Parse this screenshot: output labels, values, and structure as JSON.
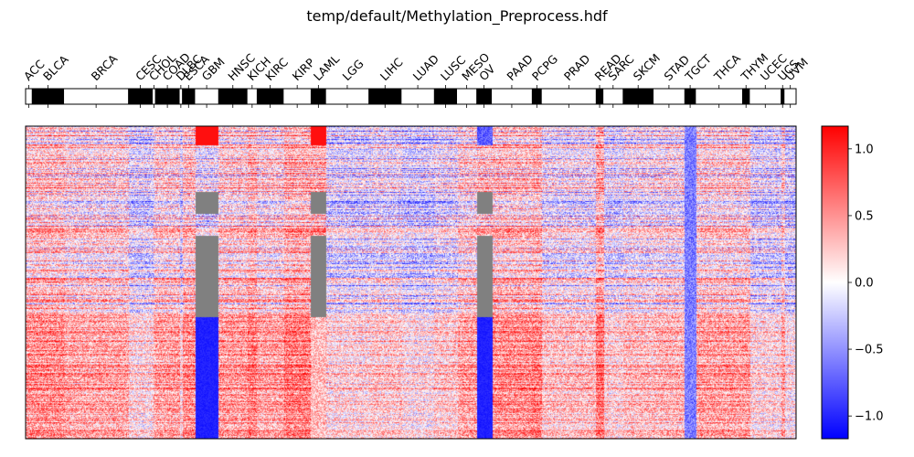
{
  "chart_data": {
    "type": "heatmap",
    "title": "temp/default/Methylation_Preprocess.hdf",
    "categories": [
      "ACC",
      "BLCA",
      "BRCA",
      "CESC",
      "CHOL",
      "COAD",
      "DLBC",
      "ESCA",
      "GBM",
      "HNSC",
      "KICH",
      "KIRC",
      "KIRP",
      "LAML",
      "LGG",
      "LIHC",
      "LUAD",
      "LUSC",
      "MESO",
      "OV",
      "PAAD",
      "PCPG",
      "PRAD",
      "READ",
      "SARC",
      "SKCM",
      "STAD",
      "TGCT",
      "THCA",
      "THYM",
      "UCEC",
      "UCS",
      "UVM"
    ],
    "category_fraction_bounds": [
      0.0,
      0.008,
      0.05,
      0.133,
      0.165,
      0.168,
      0.2,
      0.203,
      0.22,
      0.25,
      0.288,
      0.3,
      0.335,
      0.37,
      0.39,
      0.445,
      0.488,
      0.53,
      0.56,
      0.585,
      0.605,
      0.657,
      0.67,
      0.74,
      0.75,
      0.775,
      0.815,
      0.855,
      0.87,
      0.93,
      0.94,
      0.98,
      0.985,
      1.0
    ],
    "category_bar_fill": [
      "white",
      "black",
      "white",
      "black",
      "white",
      "black",
      "white",
      "black",
      "white",
      "black",
      "white",
      "black",
      "white",
      "black",
      "white",
      "black",
      "white",
      "black",
      "white",
      "black",
      "white",
      "black",
      "white",
      "black",
      "white",
      "black",
      "white",
      "black",
      "white",
      "black",
      "white",
      "black",
      "white"
    ],
    "colorbar": {
      "ticks": [
        1.0,
        0.5,
        0.0,
        -0.5,
        -1.0
      ],
      "tick_labels": [
        "1.0",
        "0.5",
        "0.0",
        "−0.5",
        "−1.0"
      ],
      "range": [
        -1.17,
        1.17
      ],
      "colormap": [
        "#0000ff",
        "#ffffff",
        "#ff0000"
      ]
    },
    "missing_color": "#808080",
    "missing_blocks": [
      {
        "category": "GBM",
        "row_ranges": [
          [
            0.21,
            0.28
          ],
          [
            0.35,
            0.61
          ]
        ]
      },
      {
        "category": "LAML",
        "row_ranges": [
          [
            0.21,
            0.28
          ],
          [
            0.35,
            0.61
          ]
        ]
      },
      {
        "category": "OV",
        "row_ranges": [
          [
            0.21,
            0.28
          ],
          [
            0.35,
            0.61
          ]
        ]
      }
    ]
  }
}
